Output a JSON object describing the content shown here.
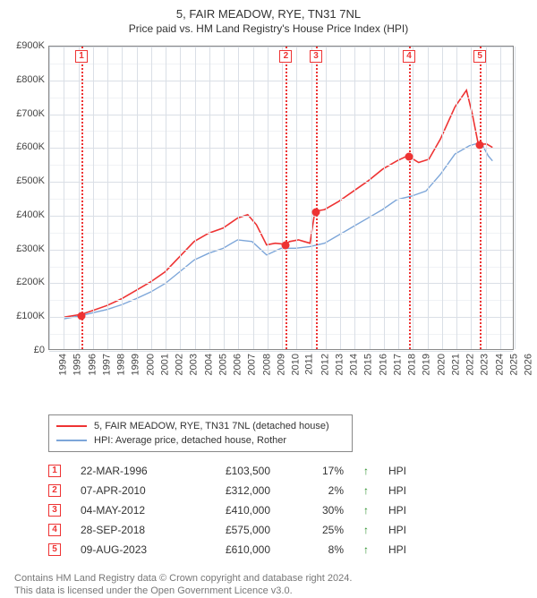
{
  "title": {
    "line1": "5, FAIR MEADOW, RYE, TN31 7NL",
    "line2": "Price paid vs. HM Land Registry's House Price Index (HPI)"
  },
  "chart": {
    "type": "line",
    "background_color": "#ffffff",
    "grid_major_color": "#dadfe6",
    "grid_minor_color": "#f0f2f5",
    "axis_color": "#888888",
    "ylabel_prefix": "£",
    "ylim": [
      0,
      900
    ],
    "ytick_step": 100,
    "ytick_labels": [
      "£0",
      "£100K",
      "£200K",
      "£300K",
      "£400K",
      "£500K",
      "£600K",
      "£700K",
      "£800K",
      "£900K"
    ],
    "xlim": [
      1994,
      2026
    ],
    "xtick_step": 1,
    "xtick_labels": [
      "1994",
      "1995",
      "1996",
      "1997",
      "1998",
      "1999",
      "2000",
      "2001",
      "2002",
      "2003",
      "2004",
      "2005",
      "2006",
      "2007",
      "2008",
      "2009",
      "2010",
      "2011",
      "2012",
      "2013",
      "2014",
      "2015",
      "2016",
      "2017",
      "2018",
      "2019",
      "2020",
      "2021",
      "2022",
      "2023",
      "2024",
      "2025",
      "2026"
    ],
    "series": [
      {
        "name": "price_paid",
        "label": "5, FAIR MEADOW, RYE, TN31 7NL (detached house)",
        "color": "#ee3333",
        "line_width": 1.6,
        "data": [
          [
            1995.0,
            95
          ],
          [
            1996.22,
            103.5
          ],
          [
            1997.0,
            115
          ],
          [
            1998.0,
            130
          ],
          [
            1999.0,
            150
          ],
          [
            2000.0,
            175
          ],
          [
            2001.0,
            200
          ],
          [
            2002.0,
            230
          ],
          [
            2003.0,
            275
          ],
          [
            2004.0,
            320
          ],
          [
            2005.0,
            345
          ],
          [
            2006.0,
            360
          ],
          [
            2007.0,
            390
          ],
          [
            2007.7,
            400
          ],
          [
            2008.3,
            370
          ],
          [
            2009.0,
            310
          ],
          [
            2009.6,
            315
          ],
          [
            2010.27,
            312
          ],
          [
            2010.6,
            320
          ],
          [
            2011.2,
            325
          ],
          [
            2011.6,
            320
          ],
          [
            2012.0,
            315
          ],
          [
            2012.34,
            410
          ],
          [
            2013.0,
            415
          ],
          [
            2014.0,
            440
          ],
          [
            2015.0,
            470
          ],
          [
            2016.0,
            500
          ],
          [
            2017.0,
            535
          ],
          [
            2018.0,
            560
          ],
          [
            2018.74,
            575
          ],
          [
            2019.5,
            555
          ],
          [
            2020.2,
            565
          ],
          [
            2021.0,
            625
          ],
          [
            2022.0,
            720
          ],
          [
            2022.8,
            770
          ],
          [
            2023.2,
            700
          ],
          [
            2023.61,
            610
          ],
          [
            2024.2,
            610
          ],
          [
            2024.6,
            600
          ]
        ]
      },
      {
        "name": "hpi",
        "label": "HPI: Average price, detached house, Rother",
        "color": "#7da6d9",
        "line_width": 1.4,
        "data": [
          [
            1995.0,
            90
          ],
          [
            1996.22,
            100
          ],
          [
            1997.0,
            108
          ],
          [
            1998.0,
            118
          ],
          [
            1999.0,
            132
          ],
          [
            2000.0,
            150
          ],
          [
            2001.0,
            170
          ],
          [
            2002.0,
            195
          ],
          [
            2003.0,
            230
          ],
          [
            2004.0,
            265
          ],
          [
            2005.0,
            285
          ],
          [
            2006.0,
            300
          ],
          [
            2007.0,
            325
          ],
          [
            2008.0,
            320
          ],
          [
            2009.0,
            280
          ],
          [
            2010.0,
            300
          ],
          [
            2011.0,
            300
          ],
          [
            2012.0,
            305
          ],
          [
            2013.0,
            315
          ],
          [
            2014.0,
            340
          ],
          [
            2015.0,
            365
          ],
          [
            2016.0,
            390
          ],
          [
            2017.0,
            415
          ],
          [
            2018.0,
            445
          ],
          [
            2019.0,
            455
          ],
          [
            2020.0,
            470
          ],
          [
            2021.0,
            520
          ],
          [
            2022.0,
            580
          ],
          [
            2023.0,
            605
          ],
          [
            2023.8,
            615
          ],
          [
            2024.3,
            575
          ],
          [
            2024.6,
            560
          ]
        ]
      }
    ],
    "sale_markers": [
      {
        "idx": "1",
        "year": 1996.22,
        "value": 103.5
      },
      {
        "idx": "2",
        "year": 2010.27,
        "value": 312
      },
      {
        "idx": "3",
        "year": 2012.34,
        "value": 410
      },
      {
        "idx": "4",
        "year": 2018.74,
        "value": 575
      },
      {
        "idx": "5",
        "year": 2023.61,
        "value": 610
      }
    ]
  },
  "legend": {
    "items": [
      {
        "color": "#ee3333",
        "label": "5, FAIR MEADOW, RYE, TN31 7NL (detached house)"
      },
      {
        "color": "#7da6d9",
        "label": "HPI: Average price, detached house, Rother"
      }
    ]
  },
  "sales_table": {
    "hpi_suffix": "HPI",
    "rows": [
      {
        "idx": "1",
        "date": "22-MAR-1996",
        "price": "£103,500",
        "pct": "17%",
        "arrow": "↑"
      },
      {
        "idx": "2",
        "date": "07-APR-2010",
        "price": "£312,000",
        "pct": "2%",
        "arrow": "↑"
      },
      {
        "idx": "3",
        "date": "04-MAY-2012",
        "price": "£410,000",
        "pct": "30%",
        "arrow": "↑"
      },
      {
        "idx": "4",
        "date": "28-SEP-2018",
        "price": "£575,000",
        "pct": "25%",
        "arrow": "↑"
      },
      {
        "idx": "5",
        "date": "09-AUG-2023",
        "price": "£610,000",
        "pct": "8%",
        "arrow": "↑"
      }
    ]
  },
  "footnote": {
    "line1": "Contains HM Land Registry data © Crown copyright and database right 2024.",
    "line2": "This data is licensed under the Open Government Licence v3.0."
  }
}
